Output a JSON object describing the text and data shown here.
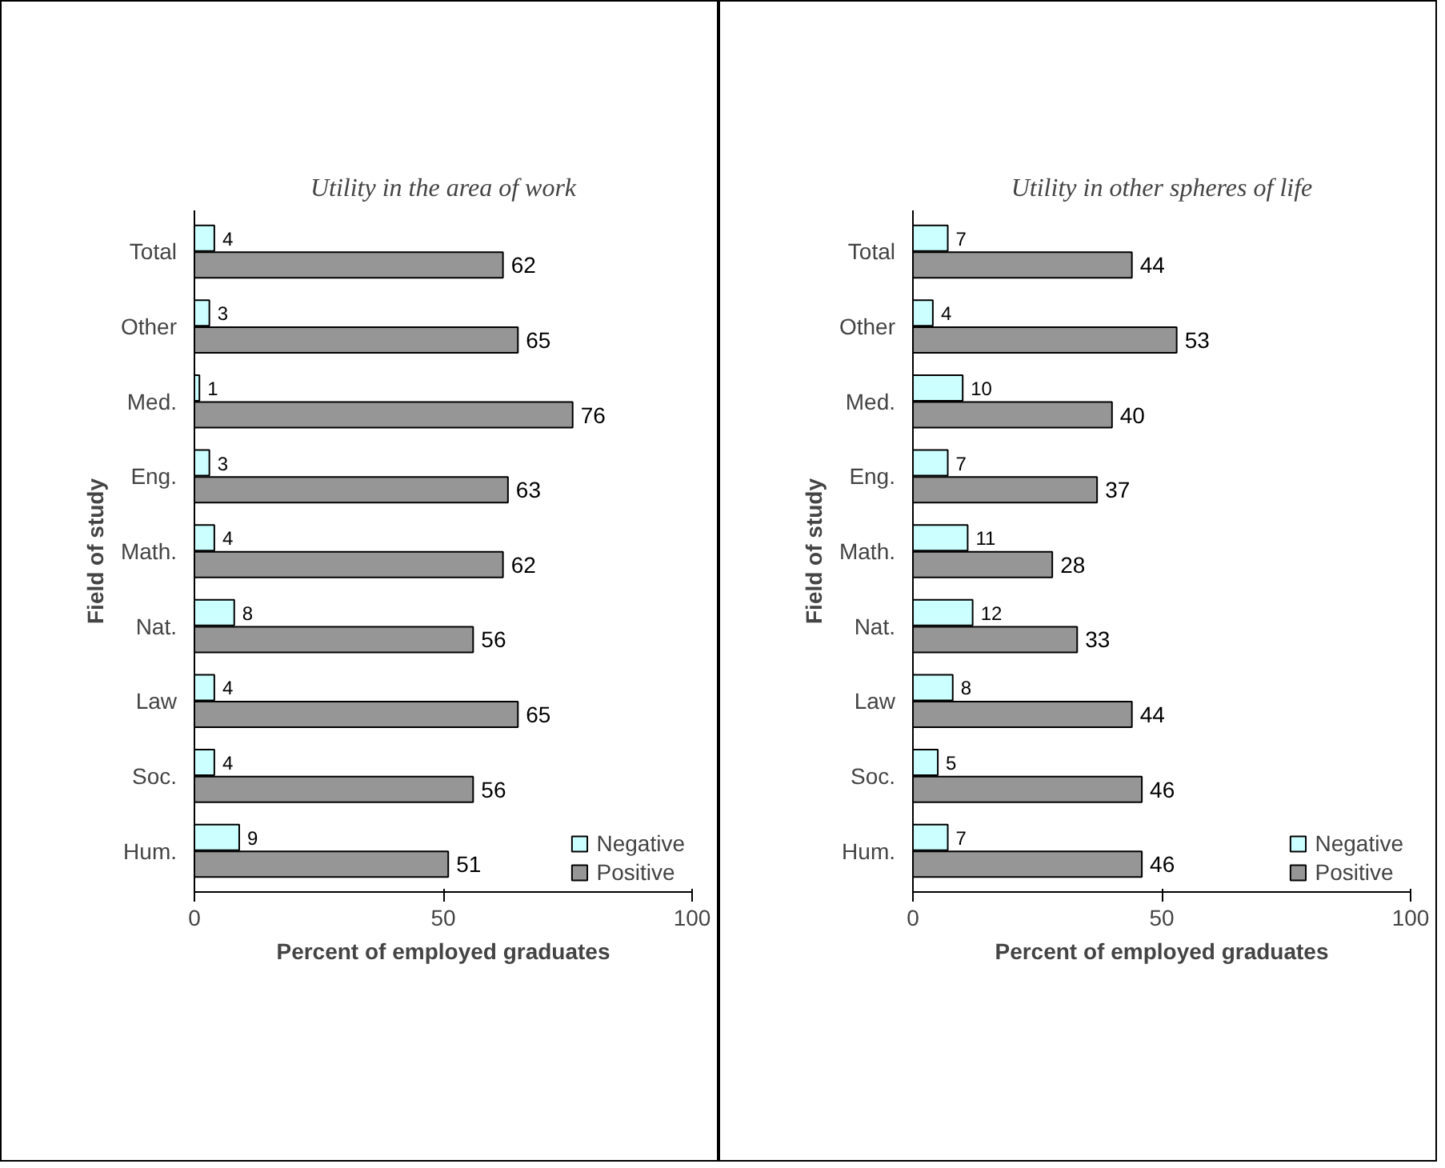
{
  "chart_data": [
    {
      "type": "bar",
      "orientation": "horizontal",
      "title": "Utility in the area of work",
      "xlabel": "Percent of employed graduates",
      "ylabel": "Field of study",
      "categories": [
        "Total",
        "Other",
        "Med.",
        "Eng.",
        "Math.",
        "Nat.",
        "Law",
        "Soc.",
        "Hum."
      ],
      "series": [
        {
          "name": "Negative",
          "color": "#ccffff",
          "values": [
            4,
            3,
            1,
            3,
            4,
            8,
            4,
            4,
            9
          ]
        },
        {
          "name": "Positive",
          "color": "#969696",
          "values": [
            62,
            65,
            76,
            63,
            62,
            56,
            65,
            56,
            51
          ]
        }
      ],
      "xlim": [
        0,
        100
      ],
      "xticks": [
        0,
        50,
        100
      ],
      "data_labels": true,
      "grid": false,
      "legend": "bottom right"
    },
    {
      "type": "bar",
      "orientation": "horizontal",
      "title": "Utility in other spheres of life",
      "xlabel": "Percent of employed graduates",
      "ylabel": "Field of study",
      "categories": [
        "Total",
        "Other",
        "Med.",
        "Eng.",
        "Math.",
        "Nat.",
        "Law",
        "Soc.",
        "Hum."
      ],
      "series": [
        {
          "name": "Negative",
          "color": "#ccffff",
          "values": [
            7,
            4,
            10,
            7,
            11,
            12,
            8,
            5,
            7
          ]
        },
        {
          "name": "Positive",
          "color": "#969696",
          "values": [
            44,
            53,
            40,
            37,
            28,
            33,
            44,
            46,
            46
          ]
        }
      ],
      "xlim": [
        0,
        100
      ],
      "xticks": [
        0,
        50,
        100
      ],
      "data_labels": true,
      "grid": false,
      "legend": "bottom right"
    }
  ]
}
